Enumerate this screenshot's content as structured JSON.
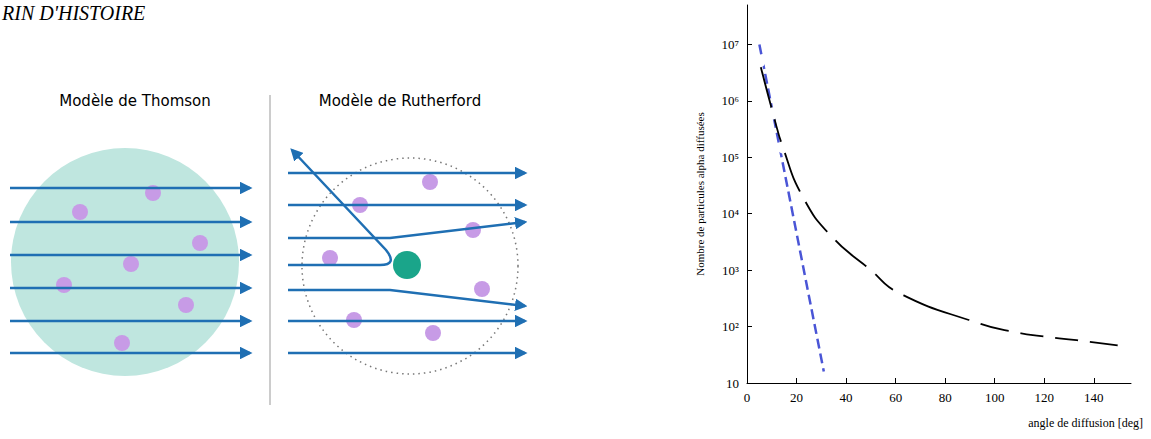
{
  "header": {
    "title": "RIN D'HISTOIRE"
  },
  "diagram": {
    "panels": [
      {
        "title": "Modèle de Thomson"
      },
      {
        "title": "Modèle de Rutherford"
      }
    ]
  },
  "chart_data": {
    "type": "line",
    "xlabel": "angle de diffusion [deg]",
    "ylabel": "Nombre de particules alpha diffusées",
    "log": "y",
    "grid": false,
    "xlim": [
      0,
      155
    ],
    "xticks": [
      0,
      20,
      40,
      60,
      80,
      100,
      120,
      140
    ],
    "ylim": [
      10,
      50000000
    ],
    "yticks": [
      10,
      {
        "value": 100,
        "label": "10²"
      },
      {
        "value": 1000,
        "label": "10³"
      },
      {
        "value": 10000,
        "label": "10⁴"
      },
      {
        "value": 100000,
        "label": "10⁵"
      },
      {
        "value": 1000000,
        "label": "10⁶"
      },
      {
        "value": 10000000,
        "label": "10⁷"
      }
    ],
    "series": [
      {
        "color": "#000000",
        "marker": "open_circle",
        "line_style": "solid",
        "x": [
          5,
          10.5,
          14.5,
          22.5,
          34,
          50,
          61,
          92,
          108,
          122,
          136,
          152
        ],
        "values": [
          5000000,
          600000,
          150000,
          20000,
          4000,
          1000,
          400,
          120,
          80,
          65,
          55,
          45
        ]
      },
      {
        "color": "#4a55d6",
        "marker": "none",
        "line_style": "dashed",
        "x": [
          5,
          31
        ],
        "values": [
          10000000,
          16
        ]
      }
    ]
  }
}
